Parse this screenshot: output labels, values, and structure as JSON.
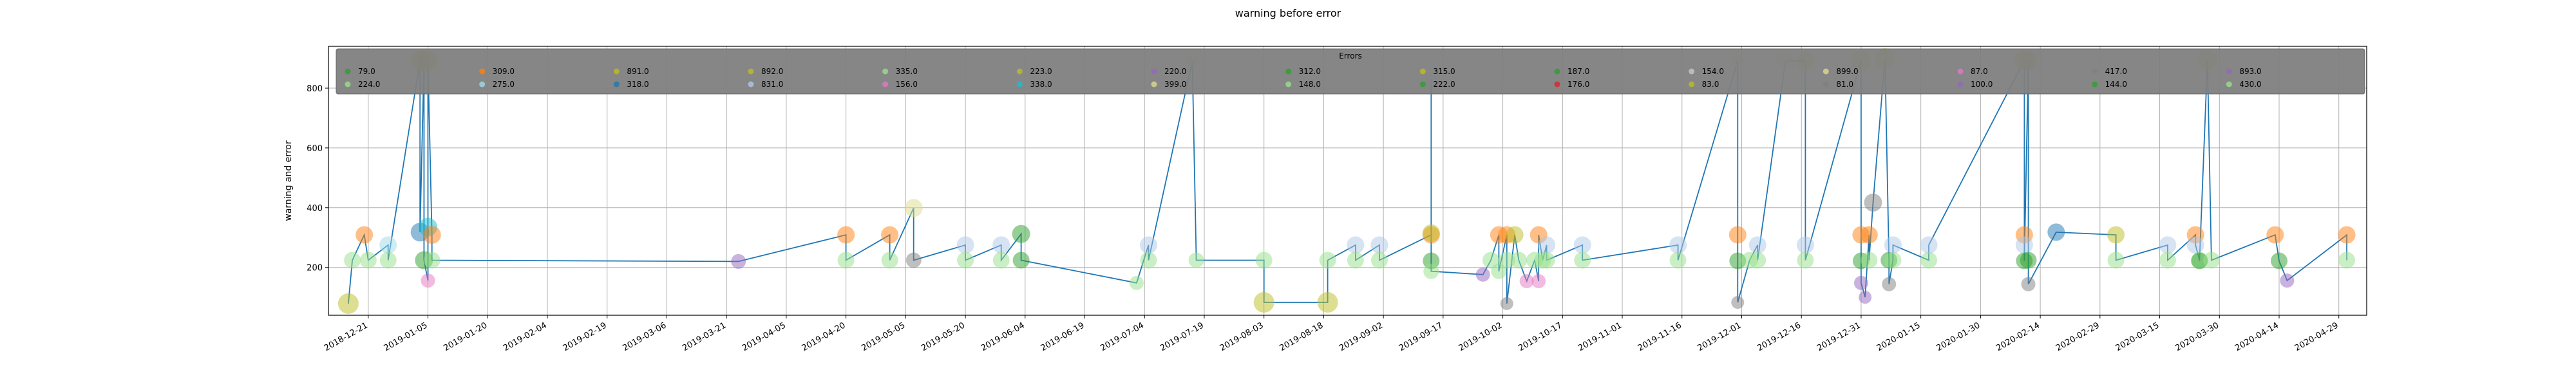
{
  "chart_data": {
    "type": "scatter",
    "title": "warning before error",
    "xlabel": "",
    "ylabel": "warning and error",
    "ylim": [
      40,
      940
    ],
    "yticks": [
      200,
      400,
      600,
      800
    ],
    "xlim": [
      "2018-12-11",
      "2020-05-06"
    ],
    "xticks": [
      "2018-12-21",
      "2019-01-05",
      "2019-01-20",
      "2019-02-04",
      "2019-02-19",
      "2019-03-06",
      "2019-03-21",
      "2019-04-05",
      "2019-04-20",
      "2019-05-05",
      "2019-05-20",
      "2019-06-04",
      "2019-06-19",
      "2019-07-04",
      "2019-07-19",
      "2019-08-03",
      "2019-08-18",
      "2019-09-02",
      "2019-09-17",
      "2019-10-02",
      "2019-10-17",
      "2019-11-01",
      "2019-11-16",
      "2019-12-01",
      "2019-12-16",
      "2019-12-31",
      "2020-01-15",
      "2020-01-30",
      "2020-02-14",
      "2020-02-29",
      "2020-03-15",
      "2020-03-30",
      "2020-04-14",
      "2020-04-29"
    ],
    "grid": true,
    "line_color": "#1f77b4",
    "legend": {
      "title": "Errors",
      "placement": "top",
      "background": "#808080",
      "entries": [
        {
          "label": "79.0",
          "color": "#2ca02c"
        },
        {
          "label": "224.0",
          "color": "#98df8a"
        },
        {
          "label": "309.0",
          "color": "#ff7f0e"
        },
        {
          "label": "275.0",
          "color": "#9edae5"
        },
        {
          "label": "891.0",
          "color": "#bcbd22"
        },
        {
          "label": "318.0",
          "color": "#1f77b4"
        },
        {
          "label": "892.0",
          "color": "#bcbd22"
        },
        {
          "label": "831.0",
          "color": "#aec7e8"
        },
        {
          "label": "335.0",
          "color": "#98df8a"
        },
        {
          "label": "156.0",
          "color": "#e377c2"
        },
        {
          "label": "223.0",
          "color": "#bcbd22"
        },
        {
          "label": "338.0",
          "color": "#17becf"
        },
        {
          "label": "220.0",
          "color": "#9467bd"
        },
        {
          "label": "399.0",
          "color": "#dbdb8d"
        },
        {
          "label": "312.0",
          "color": "#2ca02c"
        },
        {
          "label": "148.0",
          "color": "#98df8a"
        },
        {
          "label": "315.0",
          "color": "#bcbd22"
        },
        {
          "label": "222.0",
          "color": "#2ca02c"
        },
        {
          "label": "187.0",
          "color": "#2ca02c"
        },
        {
          "label": "176.0",
          "color": "#d62728"
        },
        {
          "label": "154.0",
          "color": "#c7c7c7"
        },
        {
          "label": "83.0",
          "color": "#bcbd22"
        },
        {
          "label": "899.0",
          "color": "#dbdb8d"
        },
        {
          "label": "81.0",
          "color": "#7f7f7f"
        },
        {
          "label": "87.0",
          "color": "#e377c2"
        },
        {
          "label": "100.0",
          "color": "#9467bd"
        },
        {
          "label": "417.0",
          "color": "#7f7f7f"
        },
        {
          "label": "144.0",
          "color": "#2ca02c"
        },
        {
          "label": "893.0",
          "color": "#9467bd"
        },
        {
          "label": "430.0",
          "color": "#98df8a"
        }
      ]
    },
    "points": [
      {
        "x": "2018-12-16",
        "y": 79,
        "c": "#bcbd22",
        "s": 1
      },
      {
        "x": "2018-12-17",
        "y": 224,
        "c": "#98df8a",
        "s": 0.7
      },
      {
        "x": "2018-12-20",
        "y": 309,
        "c": "#ff7f0e",
        "s": 0.75
      },
      {
        "x": "2018-12-21",
        "y": 224,
        "c": "#98df8a",
        "s": 0.7
      },
      {
        "x": "2018-12-26",
        "y": 275,
        "c": "#9edae5",
        "s": 0.75
      },
      {
        "x": "2018-12-26",
        "y": 224,
        "c": "#98df8a",
        "s": 0.7
      },
      {
        "x": "2019-01-03",
        "y": 891,
        "c": "#bcbd22",
        "s": 1
      },
      {
        "x": "2019-01-03",
        "y": 318,
        "c": "#1f77b4",
        "s": 0.85
      },
      {
        "x": "2019-01-04",
        "y": 892,
        "c": "#bcbd22",
        "s": 1
      },
      {
        "x": "2019-01-04",
        "y": 224,
        "c": "#2ca02c",
        "s": 0.8
      },
      {
        "x": "2019-01-05",
        "y": 156,
        "c": "#e377c2",
        "s": 0.5
      },
      {
        "x": "2019-01-05",
        "y": 335,
        "c": "#17becf",
        "s": 0.85
      },
      {
        "x": "2019-01-05",
        "y": 892,
        "c": "#bcbd22",
        "s": 1
      },
      {
        "x": "2019-01-06",
        "y": 309,
        "c": "#ff7f0e",
        "s": 0.8
      },
      {
        "x": "2019-01-06",
        "y": 224,
        "c": "#98df8a",
        "s": 0.7
      },
      {
        "x": "2019-03-24",
        "y": 220,
        "c": "#9467bd",
        "s": 0.55
      },
      {
        "x": "2019-04-20",
        "y": 309,
        "c": "#ff7f0e",
        "s": 0.75
      },
      {
        "x": "2019-04-20",
        "y": 224,
        "c": "#98df8a",
        "s": 0.7
      },
      {
        "x": "2019-05-01",
        "y": 309,
        "c": "#ff7f0e",
        "s": 0.75
      },
      {
        "x": "2019-05-01",
        "y": 224,
        "c": "#98df8a",
        "s": 0.7
      },
      {
        "x": "2019-05-07",
        "y": 399,
        "c": "#dbdb8d",
        "s": 0.8
      },
      {
        "x": "2019-05-07",
        "y": 224,
        "c": "#7f7f7f",
        "s": 0.6
      },
      {
        "x": "2019-05-20",
        "y": 275,
        "c": "#aec7e8",
        "s": 0.75
      },
      {
        "x": "2019-05-20",
        "y": 224,
        "c": "#98df8a",
        "s": 0.7
      },
      {
        "x": "2019-05-29",
        "y": 275,
        "c": "#aec7e8",
        "s": 0.75
      },
      {
        "x": "2019-05-29",
        "y": 224,
        "c": "#98df8a",
        "s": 0.7
      },
      {
        "x": "2019-06-03",
        "y": 312,
        "c": "#2ca02c",
        "s": 0.8
      },
      {
        "x": "2019-06-03",
        "y": 224,
        "c": "#2ca02c",
        "s": 0.7
      },
      {
        "x": "2019-07-02",
        "y": 148,
        "c": "#98df8a",
        "s": 0.5
      },
      {
        "x": "2019-07-05",
        "y": 275,
        "c": "#aec7e8",
        "s": 0.75
      },
      {
        "x": "2019-07-05",
        "y": 224,
        "c": "#98df8a",
        "s": 0.7
      },
      {
        "x": "2019-07-16",
        "y": 891,
        "c": "#dbdb8d",
        "s": 0.4
      },
      {
        "x": "2019-07-17",
        "y": 224,
        "c": "#98df8a",
        "s": 0.6
      },
      {
        "x": "2019-08-03",
        "y": 224,
        "c": "#98df8a",
        "s": 0.7
      },
      {
        "x": "2019-08-03",
        "y": 83,
        "c": "#bcbd22",
        "s": 1
      },
      {
        "x": "2019-08-19",
        "y": 83,
        "c": "#bcbd22",
        "s": 1
      },
      {
        "x": "2019-08-19",
        "y": 224,
        "c": "#98df8a",
        "s": 0.7
      },
      {
        "x": "2019-08-26",
        "y": 275,
        "c": "#aec7e8",
        "s": 0.75
      },
      {
        "x": "2019-08-26",
        "y": 224,
        "c": "#98df8a",
        "s": 0.7
      },
      {
        "x": "2019-09-01",
        "y": 275,
        "c": "#aec7e8",
        "s": 0.75
      },
      {
        "x": "2019-09-01",
        "y": 224,
        "c": "#98df8a",
        "s": 0.7
      },
      {
        "x": "2019-09-14",
        "y": 309,
        "c": "#ff7f0e",
        "s": 0.75
      },
      {
        "x": "2019-09-14",
        "y": 315,
        "c": "#bcbd22",
        "s": 0.75
      },
      {
        "x": "2019-09-14",
        "y": 831,
        "c": "#aec7e8",
        "s": 0.4
      },
      {
        "x": "2019-09-14",
        "y": 222,
        "c": "#2ca02c",
        "s": 0.7
      },
      {
        "x": "2019-09-14",
        "y": 187,
        "c": "#98df8a",
        "s": 0.6
      },
      {
        "x": "2019-09-27",
        "y": 176,
        "c": "#9467bd",
        "s": 0.5
      },
      {
        "x": "2019-09-29",
        "y": 224,
        "c": "#98df8a",
        "s": 0.7
      },
      {
        "x": "2019-10-01",
        "y": 309,
        "c": "#ff7f0e",
        "s": 0.75
      },
      {
        "x": "2019-10-01",
        "y": 187,
        "c": "#98df8a",
        "s": 0.6
      },
      {
        "x": "2019-10-03",
        "y": 309,
        "c": "#ff7f0e",
        "s": 0.75
      },
      {
        "x": "2019-10-03",
        "y": 224,
        "c": "#98df8a",
        "s": 0.7
      },
      {
        "x": "2019-10-03",
        "y": 79,
        "c": "#7f7f7f",
        "s": 0.4
      },
      {
        "x": "2019-10-05",
        "y": 309,
        "c": "#bcbd22",
        "s": 0.75
      },
      {
        "x": "2019-10-06",
        "y": 224,
        "c": "#98df8a",
        "s": 0.7
      },
      {
        "x": "2019-10-08",
        "y": 154,
        "c": "#e377c2",
        "s": 0.5
      },
      {
        "x": "2019-10-10",
        "y": 224,
        "c": "#98df8a",
        "s": 0.7
      },
      {
        "x": "2019-10-11",
        "y": 154,
        "c": "#e377c2",
        "s": 0.5
      },
      {
        "x": "2019-10-11",
        "y": 309,
        "c": "#ff7f0e",
        "s": 0.75
      },
      {
        "x": "2019-10-12",
        "y": 224,
        "c": "#98df8a",
        "s": 0.7
      },
      {
        "x": "2019-10-13",
        "y": 275,
        "c": "#aec7e8",
        "s": 0.75
      },
      {
        "x": "2019-10-13",
        "y": 224,
        "c": "#98df8a",
        "s": 0.7
      },
      {
        "x": "2019-10-22",
        "y": 275,
        "c": "#aec7e8",
        "s": 0.75
      },
      {
        "x": "2019-10-22",
        "y": 224,
        "c": "#98df8a",
        "s": 0.7
      },
      {
        "x": "2019-11-15",
        "y": 275,
        "c": "#aec7e8",
        "s": 0.75
      },
      {
        "x": "2019-11-15",
        "y": 224,
        "c": "#98df8a",
        "s": 0.7
      },
      {
        "x": "2019-11-30",
        "y": 891,
        "c": "#dbdb8d",
        "s": 0.4
      },
      {
        "x": "2019-11-30",
        "y": 309,
        "c": "#ff7f0e",
        "s": 0.75
      },
      {
        "x": "2019-11-30",
        "y": 222,
        "c": "#2ca02c",
        "s": 0.7
      },
      {
        "x": "2019-11-30",
        "y": 83,
        "c": "#7f7f7f",
        "s": 0.4
      },
      {
        "x": "2019-12-03",
        "y": 224,
        "c": "#98df8a",
        "s": 0.7
      },
      {
        "x": "2019-12-05",
        "y": 275,
        "c": "#aec7e8",
        "s": 0.75
      },
      {
        "x": "2019-12-05",
        "y": 224,
        "c": "#98df8a",
        "s": 0.7
      },
      {
        "x": "2019-12-12",
        "y": 892,
        "c": "#dbdb8d",
        "s": 0.8
      },
      {
        "x": "2019-12-17",
        "y": 891,
        "c": "#bcbd22",
        "s": 0.8
      },
      {
        "x": "2019-12-17",
        "y": 275,
        "c": "#aec7e8",
        "s": 0.75
      },
      {
        "x": "2019-12-17",
        "y": 224,
        "c": "#98df8a",
        "s": 0.7
      },
      {
        "x": "2019-12-31",
        "y": 892,
        "c": "#bcbd22",
        "s": 1
      },
      {
        "x": "2019-12-31",
        "y": 309,
        "c": "#ff7f0e",
        "s": 0.75
      },
      {
        "x": "2019-12-31",
        "y": 222,
        "c": "#2ca02c",
        "s": 0.7
      },
      {
        "x": "2019-12-31",
        "y": 148,
        "c": "#9467bd",
        "s": 0.5
      },
      {
        "x": "2020-01-01",
        "y": 100,
        "c": "#9467bd",
        "s": 0.4
      },
      {
        "x": "2020-01-02",
        "y": 309,
        "c": "#ff7f0e",
        "s": 0.75
      },
      {
        "x": "2020-01-02",
        "y": 224,
        "c": "#98df8a",
        "s": 0.7
      },
      {
        "x": "2020-01-03",
        "y": 417,
        "c": "#7f7f7f",
        "s": 0.8
      },
      {
        "x": "2020-01-06",
        "y": 899,
        "c": "#bcbd22",
        "s": 1
      },
      {
        "x": "2020-01-07",
        "y": 224,
        "c": "#2ca02c",
        "s": 0.7
      },
      {
        "x": "2020-01-07",
        "y": 144,
        "c": "#7f7f7f",
        "s": 0.5
      },
      {
        "x": "2020-01-08",
        "y": 224,
        "c": "#98df8a",
        "s": 0.7
      },
      {
        "x": "2020-01-08",
        "y": 275,
        "c": "#aec7e8",
        "s": 0.75
      },
      {
        "x": "2020-01-17",
        "y": 224,
        "c": "#98df8a",
        "s": 0.7
      },
      {
        "x": "2020-01-17",
        "y": 275,
        "c": "#aec7e8",
        "s": 0.75
      },
      {
        "x": "2020-02-10",
        "y": 893,
        "c": "#bcbd22",
        "s": 1
      },
      {
        "x": "2020-02-10",
        "y": 309,
        "c": "#ff7f0e",
        "s": 0.75
      },
      {
        "x": "2020-02-10",
        "y": 275,
        "c": "#aec7e8",
        "s": 0.75
      },
      {
        "x": "2020-02-10",
        "y": 222,
        "c": "#2ca02c",
        "s": 0.7
      },
      {
        "x": "2020-02-11",
        "y": 892,
        "c": "#bcbd22",
        "s": 0.9
      },
      {
        "x": "2020-02-11",
        "y": 224,
        "c": "#2ca02c",
        "s": 0.7
      },
      {
        "x": "2020-02-11",
        "y": 144,
        "c": "#7f7f7f",
        "s": 0.5
      },
      {
        "x": "2020-02-18",
        "y": 318,
        "c": "#1f77b4",
        "s": 0.75
      },
      {
        "x": "2020-03-04",
        "y": 309,
        "c": "#bcbd22",
        "s": 0.75
      },
      {
        "x": "2020-03-04",
        "y": 224,
        "c": "#98df8a",
        "s": 0.7
      },
      {
        "x": "2020-03-17",
        "y": 275,
        "c": "#aec7e8",
        "s": 0.75
      },
      {
        "x": "2020-03-17",
        "y": 224,
        "c": "#98df8a",
        "s": 0.7
      },
      {
        "x": "2020-03-24",
        "y": 309,
        "c": "#ff7f0e",
        "s": 0.75
      },
      {
        "x": "2020-03-24",
        "y": 275,
        "c": "#aec7e8",
        "s": 0.75
      },
      {
        "x": "2020-03-25",
        "y": 224,
        "c": "#98df8a",
        "s": 0.7
      },
      {
        "x": "2020-03-25",
        "y": 222,
        "c": "#2ca02c",
        "s": 0.7
      },
      {
        "x": "2020-03-27",
        "y": 893,
        "c": "#bcbd22",
        "s": 1
      },
      {
        "x": "2020-03-28",
        "y": 224,
        "c": "#98df8a",
        "s": 0.7
      },
      {
        "x": "2020-04-13",
        "y": 309,
        "c": "#ff7f0e",
        "s": 0.75
      },
      {
        "x": "2020-04-14",
        "y": 222,
        "c": "#2ca02c",
        "s": 0.7
      },
      {
        "x": "2020-04-16",
        "y": 156,
        "c": "#9467bd",
        "s": 0.5
      },
      {
        "x": "2020-05-01",
        "y": 309,
        "c": "#ff7f0e",
        "s": 0.75
      },
      {
        "x": "2020-05-01",
        "y": 224,
        "c": "#98df8a",
        "s": 0.7
      }
    ]
  }
}
